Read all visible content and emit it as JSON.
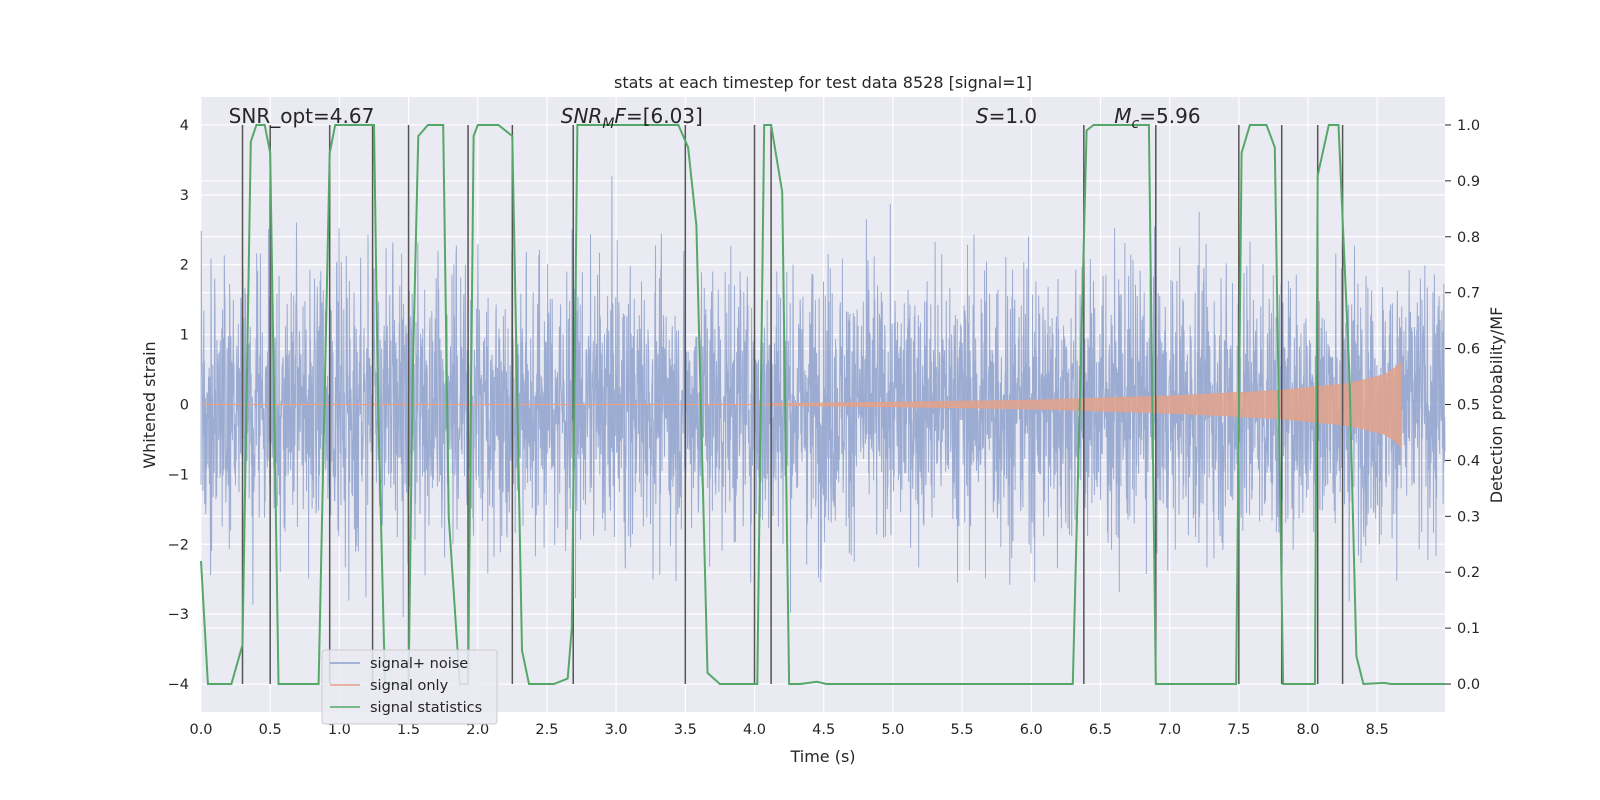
{
  "chart_data": {
    "type": "line",
    "title": "stats at each timestep for test data 8528 [signal=1]",
    "xlabel": "Time (s)",
    "ylabel": "Whitened strain",
    "y2label": "Detection probability/MF",
    "xlim": [
      0.0,
      8.99
    ],
    "ylim": [
      -4.4,
      4.4
    ],
    "y2lim": [
      -0.05,
      1.05
    ],
    "xticks": [
      0.0,
      0.5,
      1.0,
      1.5,
      2.0,
      2.5,
      3.0,
      3.5,
      4.0,
      4.5,
      5.0,
      5.5,
      6.0,
      6.5,
      7.0,
      7.5,
      8.0,
      8.5
    ],
    "xtick_labels": [
      "0.0",
      "0.5",
      "1.0",
      "1.5",
      "2.0",
      "2.5",
      "3.0",
      "3.5",
      "4.0",
      "4.5",
      "5.0",
      "5.5",
      "6.0",
      "6.5",
      "7.0",
      "7.5",
      "8.0",
      "8.5"
    ],
    "yticks": [
      -4,
      -3,
      -2,
      -1,
      0,
      1,
      2,
      3,
      4
    ],
    "ytick_labels": [
      "−4",
      "−3",
      "−2",
      "−1",
      "0",
      "1",
      "2",
      "3",
      "4"
    ],
    "y2ticks": [
      0.0,
      0.1,
      0.2,
      0.3,
      0.4,
      0.5,
      0.6,
      0.7,
      0.8,
      0.9,
      1.0
    ],
    "y2tick_labels": [
      "0.0",
      "0.1",
      "0.2",
      "0.3",
      "0.4",
      "0.5",
      "0.6",
      "0.7",
      "0.8",
      "0.9",
      "1.0"
    ],
    "grid": true,
    "legend_position": "lower-left",
    "annotations": [
      {
        "name": "snr-opt",
        "text": "SNR_opt=4.67",
        "x": 0.2
      },
      {
        "name": "snr-mf",
        "text": "SNRMF=[6.03]",
        "x": 2.6
      },
      {
        "name": "s-value",
        "text": "S=1.0",
        "x": 5.6
      },
      {
        "name": "mc-value",
        "text": "Mc=5.96",
        "x": 6.6
      }
    ],
    "series": [
      {
        "name": "signal+ noise",
        "axis": "left",
        "color": "#8da0cb",
        "kind": "noise",
        "description": "whitened strain, dense band roughly within ±2.5 with spikes to about ±3.7"
      },
      {
        "name": "signal only",
        "axis": "left",
        "color": "#e3a28b",
        "kind": "chirp",
        "chirp_envelope": {
          "x": [
            4.1,
            5.0,
            6.0,
            7.0,
            7.8,
            8.3,
            8.55,
            8.65,
            8.67
          ],
          "amplitude": [
            0.01,
            0.03,
            0.06,
            0.12,
            0.2,
            0.3,
            0.42,
            0.55,
            0.6
          ]
        }
      },
      {
        "name": "signal statistics",
        "axis": "right",
        "color": "#55a868",
        "kind": "probability",
        "x": [
          0.0,
          0.05,
          0.22,
          0.3,
          0.36,
          0.4,
          0.46,
          0.5,
          0.56,
          0.62,
          0.85,
          0.93,
          0.97,
          1.0,
          1.25,
          1.28,
          1.33,
          1.39,
          1.5,
          1.53,
          1.57,
          1.64,
          1.75,
          1.79,
          1.87,
          1.93,
          1.97,
          2.0,
          2.15,
          2.25,
          2.32,
          2.37,
          2.55,
          2.65,
          2.68,
          2.72,
          3.45,
          3.52,
          3.58,
          3.66,
          3.75,
          3.95,
          4.02,
          4.07,
          4.12,
          4.2,
          4.25,
          4.33,
          4.45,
          4.52,
          6.3,
          6.4,
          6.45,
          6.6,
          6.85,
          6.9,
          6.95,
          7.15,
          7.28,
          7.48,
          7.52,
          7.58,
          7.7,
          7.76,
          7.82,
          7.88,
          8.05,
          8.07,
          8.15,
          8.22,
          8.3,
          8.35,
          8.4,
          8.55,
          8.6,
          8.99
        ],
        "y": [
          0.22,
          0.0,
          0.0,
          0.07,
          0.97,
          1.0,
          1.0,
          0.95,
          0.0,
          0.0,
          0.0,
          0.95,
          1.0,
          1.0,
          1.0,
          0.5,
          0.0,
          0.0,
          0.0,
          0.55,
          0.98,
          1.0,
          1.0,
          0.3,
          0.0,
          0.0,
          0.98,
          1.0,
          1.0,
          0.98,
          0.06,
          0.0,
          0.0,
          0.01,
          0.1,
          1.0,
          1.0,
          0.96,
          0.82,
          0.02,
          0.0,
          0.0,
          0.0,
          1.0,
          1.0,
          0.88,
          0.0,
          0.0,
          0.004,
          0.0,
          0.0,
          0.99,
          1.0,
          1.0,
          1.0,
          0.0,
          0.0,
          0.0,
          0.0,
          0.0,
          0.95,
          1.0,
          1.0,
          0.96,
          0.0,
          0.0,
          0.0,
          0.91,
          1.0,
          1.0,
          0.55,
          0.05,
          0.0,
          0.002,
          0.0,
          0.0
        ]
      }
    ],
    "vlines": {
      "color": "#555555",
      "x": [
        0.3,
        0.5,
        0.93,
        1.24,
        1.5,
        1.93,
        2.25,
        2.69,
        3.5,
        4.0,
        4.12,
        6.38,
        6.9,
        7.5,
        7.81,
        8.07,
        8.25
      ]
    },
    "legend": [
      {
        "label": "signal+ noise",
        "color": "#8da0cb"
      },
      {
        "label": "signal only",
        "color": "#e3a28b"
      },
      {
        "label": "signal statistics",
        "color": "#55a868"
      }
    ]
  }
}
